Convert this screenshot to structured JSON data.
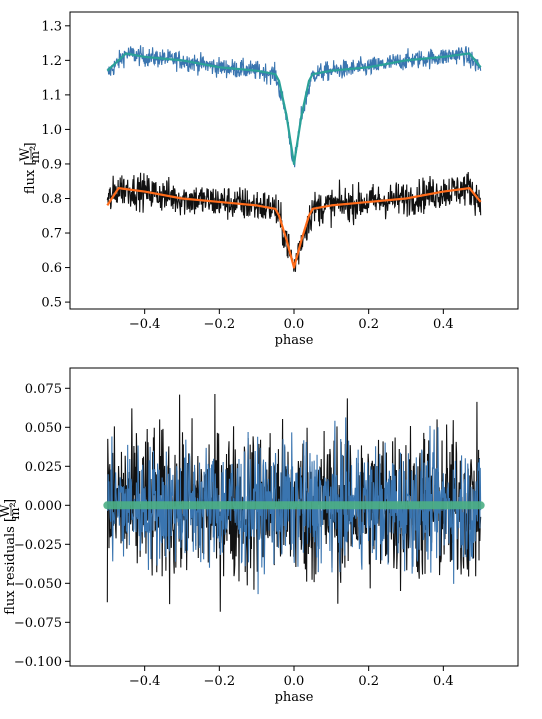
{
  "chart_data": [
    {
      "type": "line",
      "xlabel": "phase",
      "ylabel": "flux [W/m²]",
      "ylabel_main": "flux",
      "ylabel_unit_num": "W",
      "ylabel_unit_den": "m²",
      "xlim": [
        -0.6,
        0.6
      ],
      "ylim": [
        0.48,
        1.34
      ],
      "xticks": [
        -0.4,
        -0.2,
        0.0,
        0.2,
        0.4
      ],
      "xtick_labels": [
        "−0.4",
        "−0.2",
        "0.0",
        "0.2",
        "0.4"
      ],
      "yticks": [
        0.5,
        0.6,
        0.7,
        0.8,
        0.9,
        1.0,
        1.1,
        1.2,
        1.3
      ],
      "ytick_labels": [
        "0.5",
        "0.6",
        "0.7",
        "0.8",
        "0.9",
        "1.0",
        "1.1",
        "1.2",
        "1.3"
      ],
      "grid": false,
      "series": [
        {
          "kind": "observations",
          "color": "#3a75b0",
          "x": [
            -0.5,
            -0.45,
            -0.4,
            -0.3,
            -0.2,
            -0.1,
            -0.05,
            -0.02,
            0.0,
            0.02,
            0.05,
            0.1,
            0.2,
            0.3,
            0.4,
            0.45,
            0.5
          ],
          "y": [
            1.16,
            1.22,
            1.21,
            1.2,
            1.18,
            1.17,
            1.16,
            1.04,
            0.89,
            1.04,
            1.16,
            1.17,
            1.18,
            1.2,
            1.21,
            1.22,
            1.18
          ],
          "scatter": 0.025
        },
        {
          "kind": "model",
          "color": "#2aa198",
          "x": [
            -0.5,
            -0.45,
            -0.4,
            -0.3,
            -0.2,
            -0.1,
            -0.05,
            -0.04,
            -0.02,
            0.0,
            0.02,
            0.04,
            0.05,
            0.1,
            0.2,
            0.3,
            0.4,
            0.47,
            0.5
          ],
          "y": [
            1.17,
            1.22,
            1.21,
            1.2,
            1.18,
            1.17,
            1.16,
            1.14,
            1.04,
            0.9,
            1.04,
            1.14,
            1.16,
            1.17,
            1.18,
            1.2,
            1.21,
            1.22,
            1.18
          ]
        },
        {
          "kind": "observations",
          "color": "#111111",
          "x": [
            -0.5,
            -0.47,
            -0.4,
            -0.3,
            -0.2,
            -0.1,
            -0.05,
            -0.02,
            0.0,
            0.02,
            0.05,
            0.1,
            0.2,
            0.3,
            0.4,
            0.47,
            0.5
          ],
          "y": [
            0.79,
            0.83,
            0.82,
            0.8,
            0.79,
            0.78,
            0.77,
            0.68,
            0.6,
            0.68,
            0.77,
            0.78,
            0.79,
            0.8,
            0.82,
            0.83,
            0.79
          ],
          "scatter": 0.045
        },
        {
          "kind": "model",
          "color": "#ff6b1a",
          "x": [
            -0.5,
            -0.47,
            -0.4,
            -0.3,
            -0.2,
            -0.1,
            -0.05,
            -0.04,
            -0.02,
            0.0,
            0.02,
            0.04,
            0.05,
            0.1,
            0.2,
            0.3,
            0.4,
            0.47,
            0.5
          ],
          "y": [
            0.78,
            0.83,
            0.82,
            0.8,
            0.79,
            0.78,
            0.77,
            0.75,
            0.68,
            0.6,
            0.68,
            0.75,
            0.77,
            0.78,
            0.79,
            0.8,
            0.82,
            0.83,
            0.79
          ]
        }
      ]
    },
    {
      "type": "line",
      "xlabel": "phase",
      "ylabel": "flux residuals [W/m²]",
      "ylabel_main": "flux residuals",
      "ylabel_unit_num": "W",
      "ylabel_unit_den": "m²",
      "xlim": [
        -0.6,
        0.6
      ],
      "ylim": [
        -0.103,
        0.088
      ],
      "xticks": [
        -0.4,
        -0.2,
        0.0,
        0.2,
        0.4
      ],
      "xtick_labels": [
        "−0.4",
        "−0.2",
        "0.0",
        "0.2",
        "0.4"
      ],
      "yticks": [
        -0.1,
        -0.075,
        -0.05,
        -0.025,
        0.0,
        0.025,
        0.05,
        0.075
      ],
      "ytick_labels": [
        "−0.100",
        "−0.075",
        "−0.050",
        "−0.025",
        "0.000",
        "0.025",
        "0.050",
        "0.075"
      ],
      "grid": false,
      "series": [
        {
          "kind": "residuals",
          "color": "#111111",
          "x": [
            -0.5,
            0.5
          ],
          "y": [
            0.0,
            0.0
          ],
          "scatter": 0.06
        },
        {
          "kind": "residuals",
          "color": "#3a75b0",
          "x": [
            -0.5,
            0.5
          ],
          "y": [
            0.0,
            0.0
          ],
          "scatter": 0.045
        },
        {
          "kind": "zero-line",
          "color": "#4caf85",
          "x": [
            -0.5,
            0.5
          ],
          "y": [
            0.0,
            0.0
          ]
        }
      ]
    }
  ]
}
